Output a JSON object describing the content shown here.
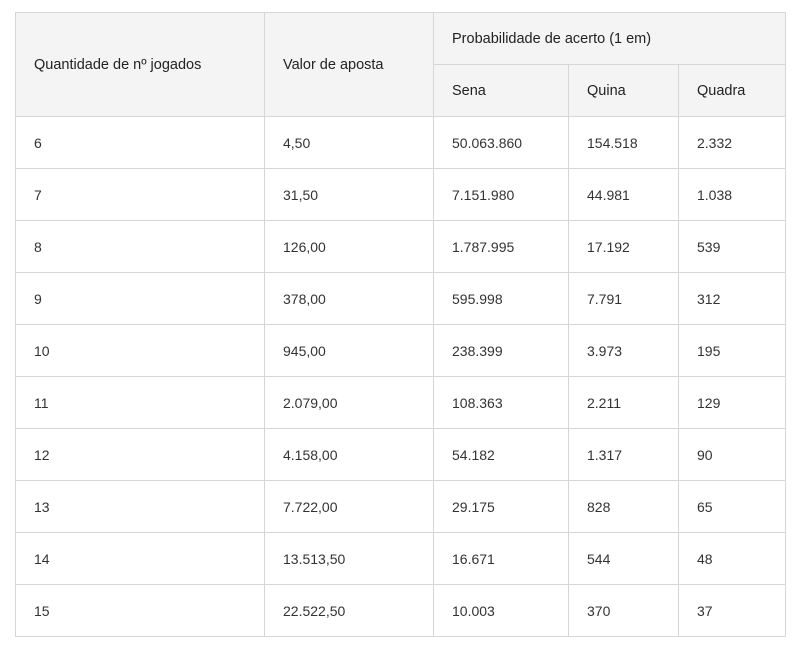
{
  "table": {
    "headers": {
      "quantity": "Quantidade de nº jogados",
      "bet_value": "Valor de aposta",
      "probability_group": "Probabilidade de acerto (1 em)",
      "sena": "Sena",
      "quina": "Quina",
      "quadra": "Quadra"
    },
    "rows": [
      {
        "quantity": "6",
        "bet_value": "4,50",
        "sena": "50.063.860",
        "quina": "154.518",
        "quadra": "2.332"
      },
      {
        "quantity": "7",
        "bet_value": "31,50",
        "sena": "7.151.980",
        "quina": "44.981",
        "quadra": "1.038"
      },
      {
        "quantity": "8",
        "bet_value": "126,00",
        "sena": "1.787.995",
        "quina": "17.192",
        "quadra": "539"
      },
      {
        "quantity": "9",
        "bet_value": "378,00",
        "sena": "595.998",
        "quina": "7.791",
        "quadra": "312"
      },
      {
        "quantity": "10",
        "bet_value": "945,00",
        "sena": "238.399",
        "quina": "3.973",
        "quadra": "195"
      },
      {
        "quantity": "11",
        "bet_value": "2.079,00",
        "sena": "108.363",
        "quina": "2.211",
        "quadra": "129"
      },
      {
        "quantity": "12",
        "bet_value": "4.158,00",
        "sena": "54.182",
        "quina": "1.317",
        "quadra": "90"
      },
      {
        "quantity": "13",
        "bet_value": "7.722,00",
        "sena": "29.175",
        "quina": "828",
        "quadra": "65"
      },
      {
        "quantity": "14",
        "bet_value": "13.513,50",
        "sena": "16.671",
        "quina": "544",
        "quadra": "48"
      },
      {
        "quantity": "15",
        "bet_value": "22.522,50",
        "sena": "10.003",
        "quina": "370",
        "quadra": "37"
      }
    ]
  }
}
